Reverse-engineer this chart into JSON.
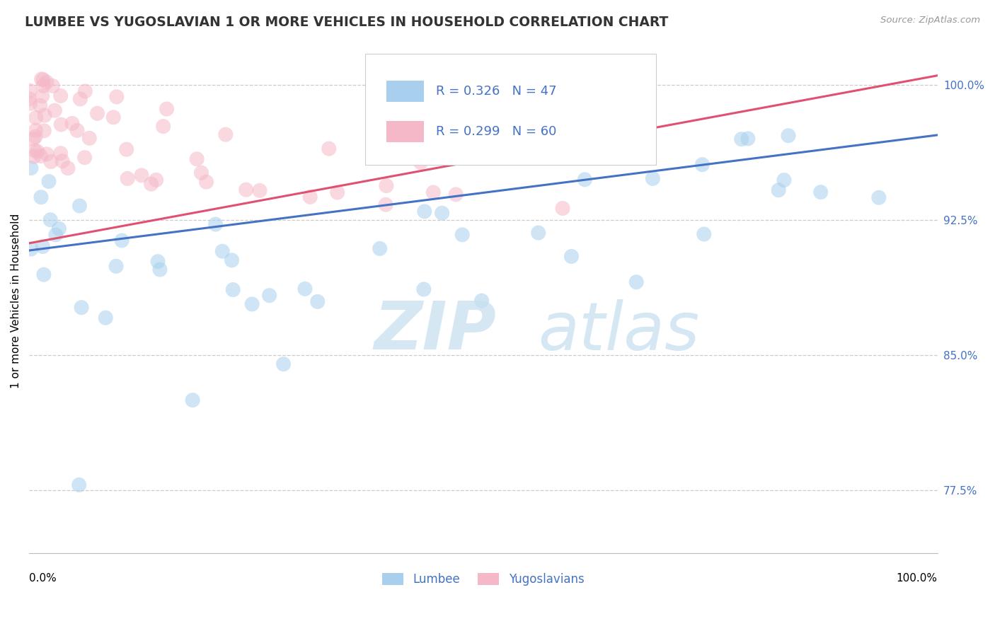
{
  "title": "LUMBEE VS YUGOSLAVIAN 1 OR MORE VEHICLES IN HOUSEHOLD CORRELATION CHART",
  "source": "Source: ZipAtlas.com",
  "ylabel": "1 or more Vehicles in Household",
  "legend_label1": "Lumbee",
  "legend_label2": "Yugoslavians",
  "R_lumbee": 0.326,
  "N_lumbee": 47,
  "R_yugo": 0.299,
  "N_yugo": 60,
  "watermark_zip": "ZIP",
  "watermark_atlas": "atlas",
  "color_lumbee": "#A8D0EE",
  "color_yugo": "#F5B8C8",
  "line_color_lumbee": "#4472C4",
  "line_color_yugo": "#E05070",
  "yticks": [
    77.5,
    85.0,
    92.5,
    100.0
  ],
  "ylim": [
    74.0,
    102.0
  ],
  "xlim": [
    0.0,
    100.0
  ],
  "blue_line_x": [
    0,
    100
  ],
  "blue_line_y": [
    90.8,
    97.2
  ],
  "pink_line_x": [
    0,
    100
  ],
  "pink_line_y": [
    91.2,
    100.5
  ]
}
